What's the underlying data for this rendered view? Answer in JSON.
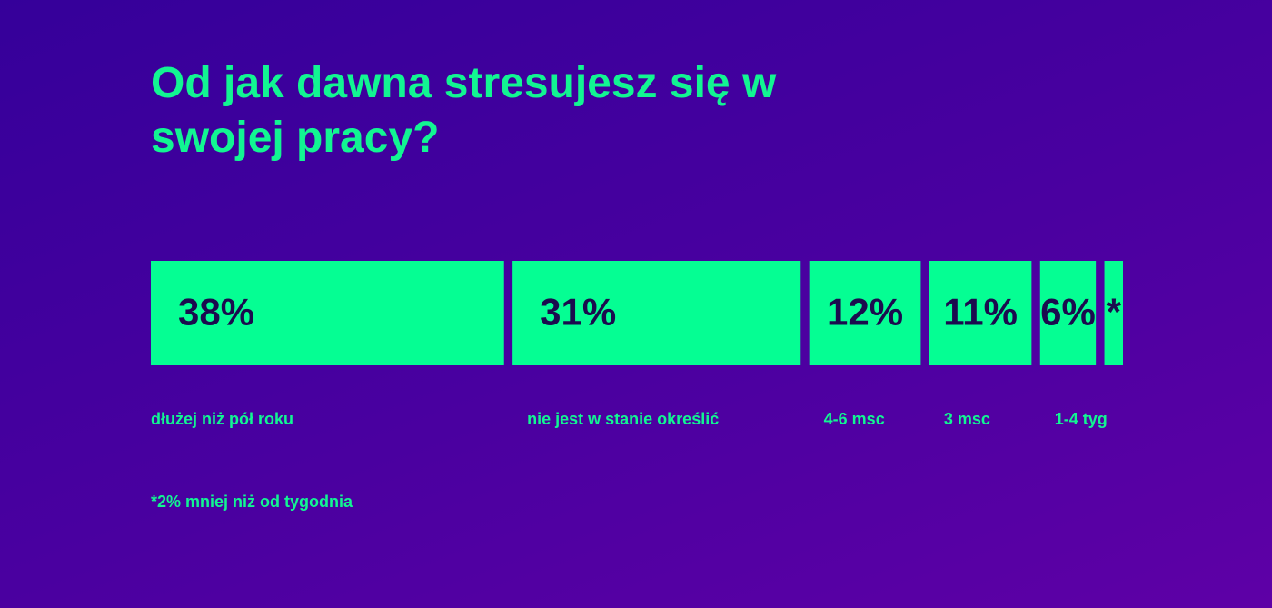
{
  "chart_data": {
    "type": "stacked-bar-100",
    "title": "Od jak dawna stresujesz się w swojej pracy?",
    "categories": [
      "dłużej niż pół roku",
      "nie jest w stanie określić",
      "4-6 msc",
      "3 msc",
      "1-4 tyg",
      null
    ],
    "values": [
      38,
      31,
      12,
      11,
      6,
      2
    ],
    "value_labels": [
      "38%",
      "31%",
      "12%",
      "11%",
      "6%",
      "*"
    ],
    "color": "#05fe93",
    "footnote": "*2% mniej niż od tygodnia"
  }
}
